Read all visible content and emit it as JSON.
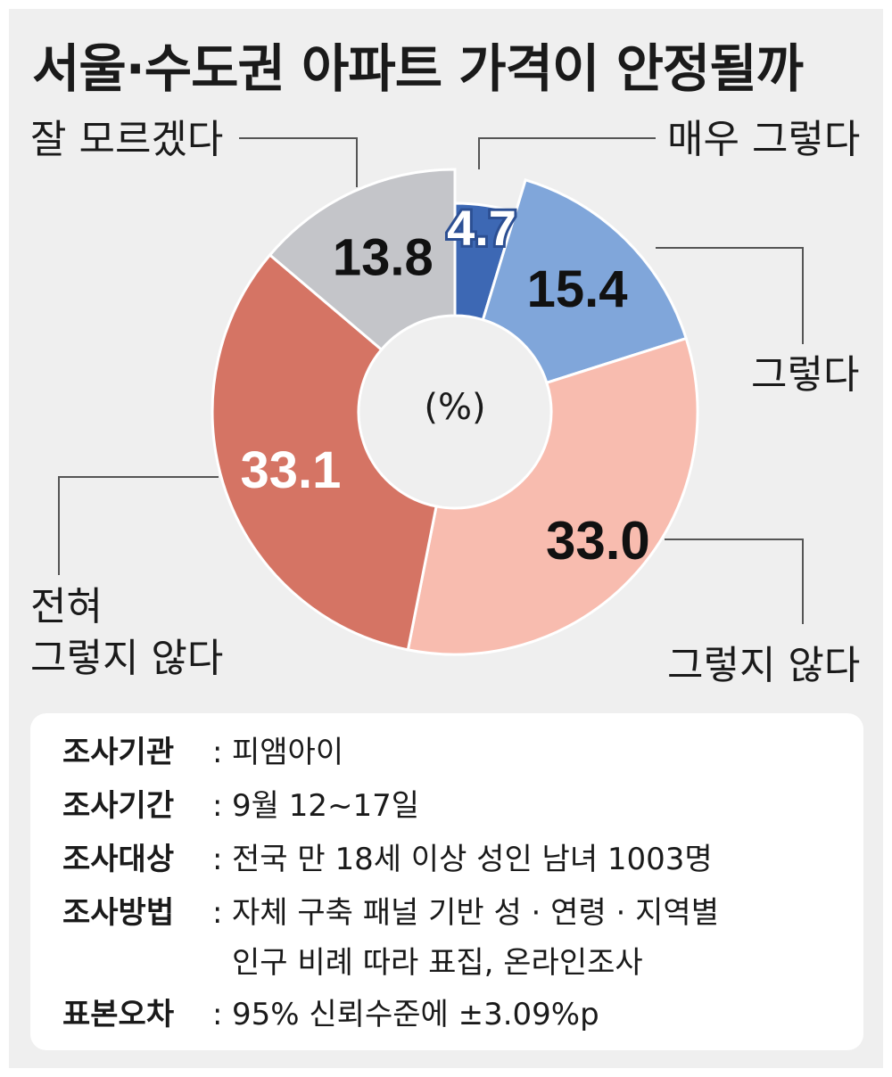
{
  "title": "서울·수도권 아파트 가격이 안정될까",
  "unit_label": "(%)",
  "chart_data": {
    "type": "pie",
    "donut": true,
    "title": "서울·수도권 아파트 가격이 안정될까",
    "unit": "(%)",
    "slices": [
      {
        "label": "매우 그렇다",
        "label_lines": [
          "매우 그렇다"
        ],
        "value": 4.7,
        "value_text": "4.7",
        "color": "#3d68b4",
        "text_color": "#ffffff"
      },
      {
        "label": "그렇다",
        "label_lines": [
          "그렇다"
        ],
        "value": 15.4,
        "value_text": "15.4",
        "color": "#80a6da",
        "text_color": "#111111"
      },
      {
        "label": "그렇지 않다",
        "label_lines": [
          "그렇지 않다"
        ],
        "value": 33.0,
        "value_text": "33.0",
        "color": "#f8bcaf",
        "text_color": "#111111"
      },
      {
        "label": "전혀 그렇지 않다",
        "label_lines": [
          "전혀",
          "그렇지 않다"
        ],
        "value": 33.1,
        "value_text": "33.1",
        "color": "#d57464",
        "text_color": "#ffffff"
      },
      {
        "label": "잘 모르겠다",
        "label_lines": [
          "잘 모르겠다"
        ],
        "value": 13.8,
        "value_text": "13.8",
        "color": "#c4c5c9",
        "text_color": "#111111"
      }
    ]
  },
  "survey": {
    "rows": [
      {
        "key": "조사기관",
        "colon": ":",
        "value": "피앰아이"
      },
      {
        "key": "조사기간",
        "colon": ":",
        "value": "9월 12~17일"
      },
      {
        "key": "조사대상",
        "colon": ":",
        "value": "전국 만 18세 이상 성인 남녀 1003명"
      },
      {
        "key": "조사방법",
        "colon": ":",
        "value": "자체 구축 패널 기반 성 · 연령 · 지역별"
      },
      {
        "key": "표본오차",
        "colon": ":",
        "value": "95% 신뢰수준에 ±3.09%p"
      }
    ],
    "method_continuation": "인구 비례 따라 표집, 온라인조사"
  }
}
